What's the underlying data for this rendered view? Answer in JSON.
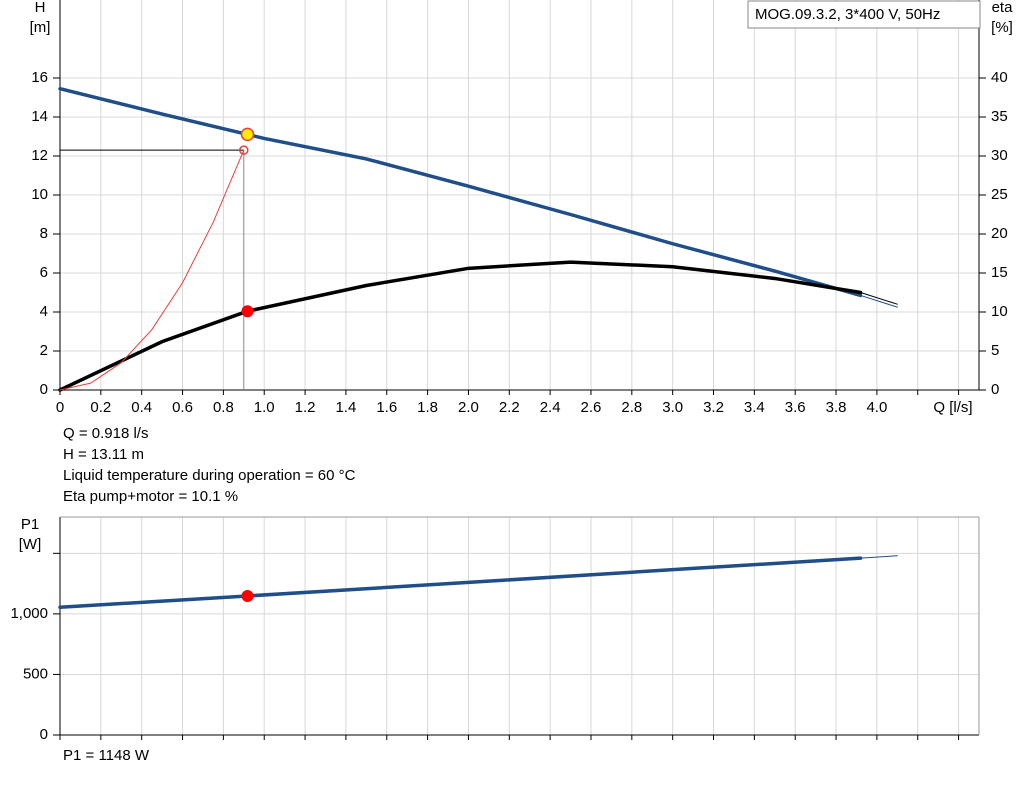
{
  "chart_data": [
    {
      "type": "line",
      "legend_box": "MOG.09.3.2, 3*400 V, 50Hz",
      "ylabel": [
        "H",
        "[m]"
      ],
      "y2label": [
        "eta",
        "[%]"
      ],
      "xlabel": "Q [l/s]",
      "xlim": [
        0,
        4.5
      ],
      "ylim": [
        0,
        20
      ],
      "y2lim": [
        0,
        50
      ],
      "grid": true,
      "xticks": [
        0,
        0.2,
        0.4,
        0.6,
        0.8,
        {
          "value": 1,
          "label": "1.0"
        },
        1.2,
        1.4,
        1.6,
        1.8,
        {
          "value": 2,
          "label": "2.0"
        },
        2.2,
        2.4,
        2.6,
        2.8,
        {
          "value": 3,
          "label": "3.0"
        },
        3.2,
        3.4,
        3.6,
        3.8,
        {
          "value": 4,
          "label": "4.0"
        },
        {
          "value": 4.2,
          "label": null
        },
        {
          "value": 4.4,
          "label": null
        }
      ],
      "yticks": [
        0,
        2,
        4,
        6,
        8,
        10,
        12,
        14,
        16
      ],
      "y2ticks": [
        0,
        5,
        10,
        15,
        20,
        25,
        30,
        35,
        40
      ],
      "series": [
        {
          "x": [
            0,
            0.5,
            1,
            1.5,
            2,
            2.5,
            3,
            3.5,
            3.92
          ],
          "values": [
            15.45,
            14.15,
            12.9,
            11.85,
            10.45,
            9,
            7.5,
            6.1,
            4.85
          ],
          "color": "#1f4e89",
          "axis": "y",
          "style": "thick"
        },
        {
          "x": [
            3.92,
            4.1
          ],
          "values": [
            4.85,
            4.25
          ],
          "color": "#1f4e89",
          "axis": "y",
          "style": "thin"
        },
        {
          "x": [
            0,
            0.5,
            0.918,
            1.5,
            2,
            2.5,
            3,
            3.5,
            3.92
          ],
          "values": [
            0,
            6.2,
            10.1,
            13.4,
            15.6,
            16.4,
            15.8,
            14.3,
            12.5
          ],
          "color": "#000000",
          "axis": "y2",
          "style": "thick"
        },
        {
          "x": [
            3.92,
            4.1
          ],
          "values": [
            12.5,
            11
          ],
          "color": "#000000",
          "axis": "y2",
          "style": "thin"
        },
        {
          "x": [
            0,
            0.15,
            0.3,
            0.45,
            0.6,
            0.75,
            0.9
          ],
          "values": [
            0,
            0.35,
            1.4,
            3.1,
            5.5,
            8.6,
            12.3
          ],
          "color": "#e8403a",
          "axis": "y",
          "style": "thin"
        }
      ],
      "markers": [
        {
          "x": 0.918,
          "y": 13.11,
          "axis": "y",
          "color": "#ffee00"
        },
        {
          "x": 0.918,
          "y": 10.1,
          "axis": "y2",
          "color": "#ff0000"
        },
        {
          "x": 0.9,
          "y": 12.3,
          "axis": "y",
          "color": "none"
        }
      ],
      "annotations": [
        "Q = 0.918 l/s",
        "H = 13.11 m",
        "Liquid temperature during operation = 60 °C",
        "Eta pump+motor = 10.1 %"
      ]
    },
    {
      "type": "line",
      "ylabel": [
        "P1",
        "[W]"
      ],
      "xlim": [
        0,
        4.5
      ],
      "ylim": [
        0,
        1800
      ],
      "grid": true,
      "xticks": [
        0,
        0.2,
        0.4,
        0.6,
        0.8,
        1,
        1.2,
        1.4,
        1.6,
        1.8,
        2,
        2.2,
        2.4,
        2.6,
        2.8,
        3,
        3.2,
        3.4,
        3.6,
        3.8,
        4,
        4.2,
        4.4
      ],
      "yticks": [
        0,
        500,
        {
          "value": 1000,
          "label": "1,000"
        },
        {
          "value": 1500,
          "label": null
        }
      ],
      "series": [
        {
          "x": [
            0,
            0.918,
            2,
            3,
            3.92
          ],
          "values": [
            1055,
            1148,
            1260,
            1365,
            1460
          ],
          "color": "#1f4e89",
          "axis": "y",
          "style": "thick"
        },
        {
          "x": [
            3.92,
            4.1
          ],
          "values": [
            1460,
            1480
          ],
          "color": "#1f4e89",
          "axis": "y",
          "style": "thin"
        }
      ],
      "markers": [
        {
          "x": 0.918,
          "y": 1148,
          "axis": "y",
          "color": "#ff0000"
        }
      ],
      "annotations": [
        "P1 = 1148 W"
      ]
    }
  ]
}
